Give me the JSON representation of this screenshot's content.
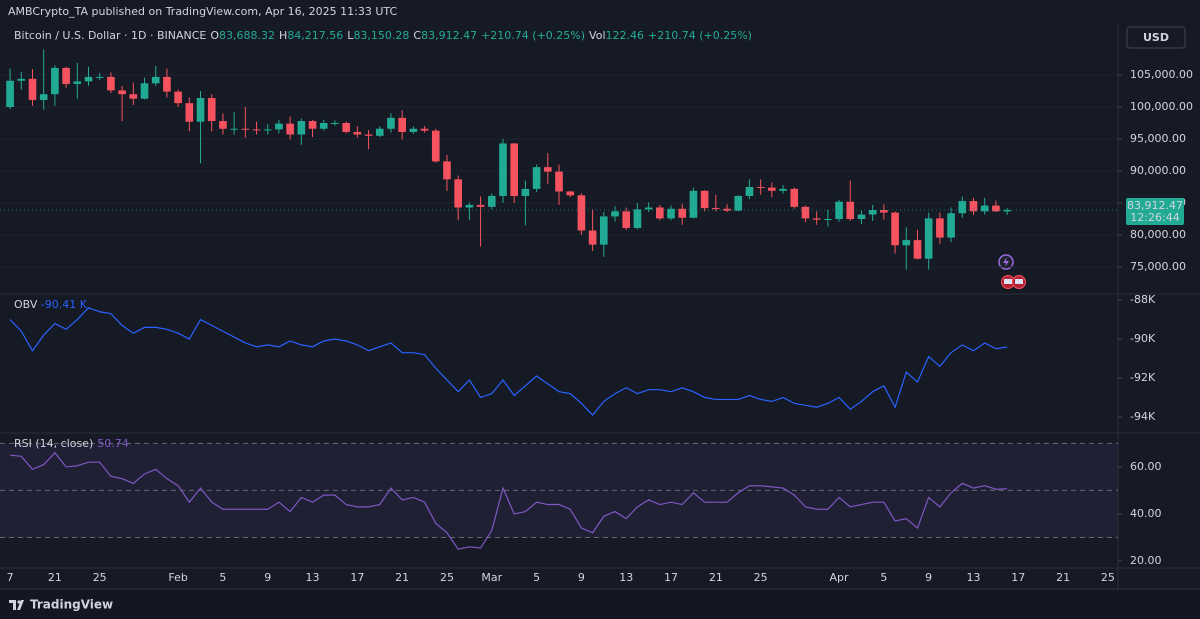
{
  "header": {
    "publisher": "AMBCrypto_TA published on TradingView.com, Apr 16, 2025 11:33 UTC"
  },
  "chart_data": [
    {
      "type": "candlestick",
      "title": "Bitcoin / U.S. Dollar · 1D · BINANCE",
      "legend": [
        {
          "key": "O",
          "value": "83,688.32"
        },
        {
          "key": "H",
          "value": "84,217.56"
        },
        {
          "key": "L",
          "value": "83,150.28"
        },
        {
          "key": "C",
          "value": "83,912.47"
        },
        {
          "value": "+210.74 (+0.25%)"
        },
        {
          "key": "Vol",
          "value": "122.46"
        },
        {
          "value": "+210.74 (+0.25%)"
        }
      ],
      "currency": "USD",
      "last_price_label": "83,912.47",
      "countdown": "12:26:44",
      "up_color": "#22ab94",
      "down_color": "#f7525f",
      "grid": true,
      "open": [
        100000,
        104100,
        104400,
        101100,
        102000,
        106100,
        103600,
        104000,
        104700,
        104700,
        102600,
        102000,
        101300,
        103700,
        104700,
        102400,
        100600,
        97700,
        101400,
        97800,
        96600,
        96600,
        96500,
        96400,
        96500,
        97400,
        95700,
        97800,
        96600,
        97500,
        97500,
        96100,
        95700,
        95500,
        96600,
        98300,
        96100,
        96600,
        96300,
        91500,
        88700,
        84300,
        84700,
        84400,
        86100,
        94300,
        86100,
        87200,
        90600,
        89900,
        86800,
        86200,
        80700,
        78500,
        82900,
        83700,
        81100,
        84000,
        84300,
        82600,
        84100,
        82700,
        86900,
        84200,
        84100,
        83800,
        86100,
        87500,
        87400,
        86900,
        87200,
        84400,
        82600,
        82400,
        82500,
        85200,
        82500,
        83200,
        83900,
        83500,
        78400,
        79200,
        76300,
        82600,
        79600,
        83400,
        85300,
        83700,
        84600,
        83688.32
      ],
      "high": [
        106000,
        105500,
        105900,
        109000,
        106500,
        106300,
        106900,
        106300,
        105300,
        105400,
        103300,
        103800,
        104600,
        106400,
        106000,
        102700,
        101500,
        102500,
        102000,
        99000,
        99200,
        100000,
        97700,
        97300,
        98000,
        98500,
        98200,
        98000,
        98000,
        97900,
        97700,
        97000,
        96400,
        97000,
        99000,
        99500,
        97000,
        97000,
        96600,
        92500,
        89300,
        85100,
        86000,
        86500,
        95000,
        94400,
        88500,
        91000,
        92800,
        91000,
        86900,
        86500,
        84000,
        83600,
        84500,
        84300,
        85000,
        85100,
        84700,
        84600,
        84900,
        87400,
        87000,
        86300,
        84800,
        86200,
        88700,
        88700,
        88200,
        87800,
        87400,
        84600,
        83700,
        83900,
        85500,
        88500,
        83800,
        84700,
        84800,
        83700,
        81200,
        80800,
        83500,
        83500,
        84300,
        86000,
        85800,
        85800,
        85400,
        84217.56
      ],
      "low": [
        99700,
        102700,
        100200,
        99600,
        100200,
        103000,
        101300,
        103300,
        104200,
        102200,
        97800,
        100300,
        101200,
        103300,
        101500,
        100000,
        96200,
        91200,
        96200,
        95700,
        95700,
        95200,
        95700,
        95700,
        95900,
        94900,
        94100,
        95300,
        96300,
        97100,
        95900,
        95200,
        93400,
        95300,
        96000,
        94900,
        95800,
        96000,
        91300,
        86900,
        82300,
        82300,
        78200,
        84000,
        85000,
        85000,
        81500,
        86700,
        88000,
        84700,
        85900,
        80000,
        77500,
        76600,
        82100,
        80800,
        80900,
        83600,
        82300,
        82300,
        81600,
        82600,
        83700,
        83700,
        83600,
        83700,
        85600,
        86300,
        85900,
        86500,
        84100,
        82000,
        81600,
        81300,
        82100,
        82200,
        81700,
        82200,
        82400,
        77100,
        74600,
        76200,
        74600,
        78600,
        78900,
        82700,
        83100,
        83200,
        83600,
        83150.28
      ],
      "close": [
        104100,
        104400,
        101100,
        102000,
        106100,
        103600,
        104000,
        104700,
        104700,
        102600,
        102000,
        101300,
        103700,
        104700,
        102400,
        100600,
        97700,
        101400,
        97800,
        96600,
        96600,
        96500,
        96400,
        96500,
        97400,
        95700,
        97800,
        96600,
        97500,
        97500,
        96100,
        95700,
        95500,
        96600,
        98300,
        96100,
        96600,
        96300,
        91500,
        88700,
        84300,
        84700,
        84400,
        86100,
        94300,
        86100,
        87200,
        90600,
        89900,
        86800,
        86200,
        80700,
        78500,
        82900,
        83700,
        81100,
        84000,
        84300,
        82600,
        84100,
        82700,
        86900,
        84200,
        84100,
        83800,
        86100,
        87500,
        87400,
        86900,
        87200,
        84400,
        82600,
        82400,
        82500,
        85200,
        82500,
        83200,
        83900,
        83500,
        78400,
        79200,
        76300,
        82600,
        79600,
        83400,
        85300,
        83700,
        84600,
        83700,
        83912.47
      ],
      "ylim": [
        70940,
        112340
      ],
      "yticks": [
        {
          "value": 75000,
          "label": "75,000.00"
        },
        {
          "value": 80000,
          "label": "80,000.00"
        },
        {
          "value": 85000,
          "label": "85,000.00"
        },
        {
          "value": 90000,
          "label": "90,000.00"
        },
        {
          "value": 95000,
          "label": "95,000.00"
        },
        {
          "value": 100000,
          "label": "100,000.00"
        },
        {
          "value": 105000,
          "label": "105,000.00"
        }
      ],
      "xlim": [
        -0.9,
        98.9
      ],
      "xticks": [
        {
          "value": 0,
          "label": "7"
        },
        {
          "value": 4,
          "label": "21"
        },
        {
          "value": 8,
          "label": "25"
        },
        {
          "value": 15,
          "label": "Feb"
        },
        {
          "value": 19,
          "label": "5"
        },
        {
          "value": 23,
          "label": "9"
        },
        {
          "value": 27,
          "label": "13"
        },
        {
          "value": 31,
          "label": "17"
        },
        {
          "value": 35,
          "label": "21"
        },
        {
          "value": 39,
          "label": "25"
        },
        {
          "value": 43,
          "label": "Mar"
        },
        {
          "value": 47,
          "label": "5"
        },
        {
          "value": 51,
          "label": "9"
        },
        {
          "value": 55,
          "label": "13"
        },
        {
          "value": 59,
          "label": "17"
        },
        {
          "value": 63,
          "label": "21"
        },
        {
          "value": 67,
          "label": "25"
        },
        {
          "value": 74,
          "label": "Apr"
        },
        {
          "value": 78,
          "label": "5"
        },
        {
          "value": 82,
          "label": "9"
        },
        {
          "value": 86,
          "label": "13"
        },
        {
          "value": 90,
          "label": "17"
        },
        {
          "value": 94,
          "label": "21"
        },
        {
          "value": 98,
          "label": "25"
        }
      ]
    },
    {
      "type": "line",
      "last_value_label": "-90.41 K",
      "series": [
        {
          "name": "OBV",
          "color": "#2962ff",
          "values": [
            -89000,
            -89600,
            -90600,
            -89800,
            -89200,
            -89500,
            -89000,
            -88400,
            -88600,
            -88700,
            -89300,
            -89700,
            -89400,
            -89400,
            -89500,
            -89700,
            -90000,
            -89000,
            -89300,
            -89600,
            -89900,
            -90200,
            -90400,
            -90300,
            -90400,
            -90100,
            -90300,
            -90400,
            -90100,
            -90000,
            -90100,
            -90300,
            -90600,
            -90400,
            -90200,
            -90700,
            -90700,
            -90800,
            -91500,
            -92100,
            -92700,
            -92100,
            -93000,
            -92800,
            -92100,
            -92900,
            -92400,
            -91900,
            -92300,
            -92700,
            -92800,
            -93300,
            -93900,
            -93200,
            -92800,
            -92500,
            -92800,
            -92600,
            -92600,
            -92700,
            -92500,
            -92700,
            -93000,
            -93100,
            -93100,
            -93100,
            -92900,
            -93100,
            -93200,
            -93000,
            -93300,
            -93400,
            -93500,
            -93300,
            -93000,
            -93600,
            -93200,
            -92700,
            -92400,
            -93500,
            -91700,
            -92200,
            -90900,
            -91400,
            -90700,
            -90300,
            -90600,
            -90200,
            -90500,
            -90410
          ]
        }
      ],
      "ylim": [
        -94770,
        -87740
      ],
      "yticks": [
        {
          "value": -88000,
          "label": "-88K"
        },
        {
          "value": -90000,
          "label": "-90K"
        },
        {
          "value": -92000,
          "label": "-92K"
        },
        {
          "value": -94000,
          "label": "-94K"
        }
      ]
    },
    {
      "type": "line",
      "series": [
        {
          "name": "RSI (14, close)",
          "color": "#7e57c2",
          "values": [
            65,
            64.5,
            59,
            61,
            66,
            60,
            60.5,
            62,
            62,
            56,
            55,
            53,
            57,
            59,
            55,
            52,
            45,
            51,
            45,
            42,
            42,
            42,
            42,
            42,
            45,
            41,
            47,
            45,
            48,
            48,
            44,
            43,
            43,
            44,
            51,
            46,
            47,
            45,
            36,
            32,
            25,
            26,
            25.5,
            33,
            51,
            40,
            41,
            45,
            44,
            44,
            42,
            34,
            32,
            39,
            41,
            38,
            43,
            46,
            44,
            45,
            44,
            49,
            45,
            45,
            45,
            49,
            52,
            52,
            51.5,
            51,
            48,
            43,
            42,
            42,
            47,
            43,
            44,
            45,
            45,
            37,
            38,
            34,
            47,
            43,
            49,
            53,
            51,
            52,
            50.5,
            50.74
          ]
        }
      ],
      "bands": [
        70,
        50,
        30
      ],
      "ylim": [
        17,
        74
      ],
      "yticks": [
        {
          "value": 60,
          "label": "60.00"
        },
        {
          "value": 40,
          "label": "40.00"
        },
        {
          "value": 20,
          "label": "20.00"
        }
      ]
    }
  ],
  "footer": {
    "brand": "TradingView"
  }
}
